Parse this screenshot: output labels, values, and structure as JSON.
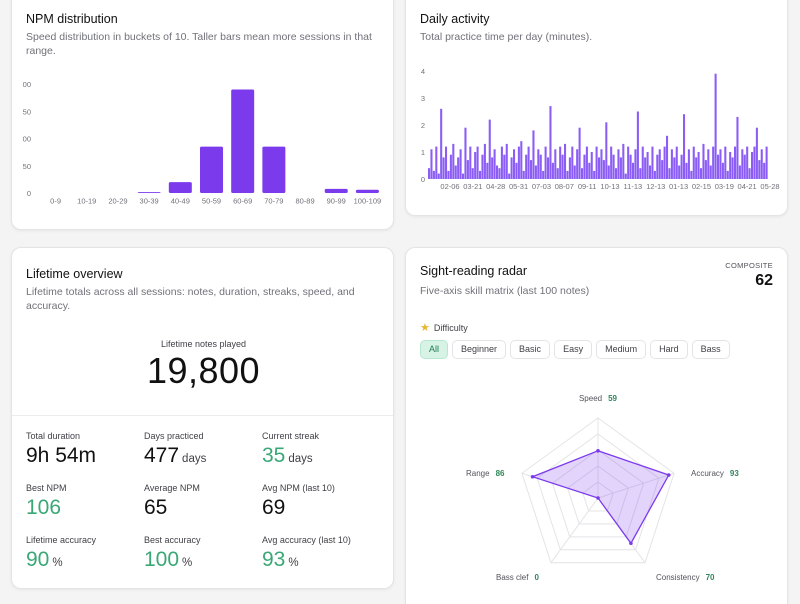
{
  "npm_card": {
    "title": "NPM distribution",
    "description": "Speed distribution in buckets of 10. Taller bars mean more sessions in that range."
  },
  "activity_card": {
    "title": "Daily activity",
    "description": "Total practice time per day (minutes)."
  },
  "lifetime_card": {
    "title": "Lifetime overview",
    "description": "Lifetime totals across all sessions: notes, duration, streaks, speed, and accuracy.",
    "hero_label": "Lifetime notes played",
    "hero_value": "19,800",
    "stats": [
      {
        "label": "Total duration",
        "value": "9h 54m",
        "unit": "",
        "highlight": false
      },
      {
        "label": "Days practiced",
        "value": "477",
        "unit": "days",
        "highlight": false
      },
      {
        "label": "Current streak",
        "value": "35",
        "unit": "days",
        "highlight": true
      },
      {
        "label": "Best NPM",
        "value": "106",
        "unit": "",
        "highlight": true
      },
      {
        "label": "Average NPM",
        "value": "65",
        "unit": "",
        "highlight": false
      },
      {
        "label": "Avg NPM (last 10)",
        "value": "69",
        "unit": "",
        "highlight": false
      },
      {
        "label": "Lifetime accuracy",
        "value": "90",
        "unit": "%",
        "highlight": true
      },
      {
        "label": "Best accuracy",
        "value": "100",
        "unit": "%",
        "highlight": true
      },
      {
        "label": "Avg accuracy (last 10)",
        "value": "93",
        "unit": "%",
        "highlight": true
      }
    ]
  },
  "radar_card": {
    "title": "Sight-reading radar",
    "description": "Five-axis skill matrix (last 100 notes)",
    "composite_label": "COMPOSITE",
    "composite_value": "62",
    "filter_label": "Difficulty",
    "filter_icon": "star-icon",
    "filters": [
      "All",
      "Beginner",
      "Basic",
      "Easy",
      "Medium",
      "Hard",
      "Bass"
    ],
    "active_filter": "All",
    "accent": "#7c3aed"
  },
  "colors": {
    "bar": "#7c3aed",
    "green": "#3aa876",
    "activity": "#8b5cf6"
  },
  "chart_data": [
    {
      "type": "bar",
      "title": "NPM distribution",
      "categories": [
        "0-9",
        "10-19",
        "20-29",
        "30-39",
        "40-49",
        "50-59",
        "60-69",
        "70-79",
        "80-89",
        "90-99",
        "100-109"
      ],
      "values": [
        0,
        0,
        0,
        0.3,
        4,
        17,
        38,
        17,
        0,
        1.5,
        1.2
      ],
      "y_tick_labels": [
        "0",
        "50",
        "00",
        "50",
        "00"
      ],
      "ylim": [
        0,
        40
      ]
    },
    {
      "type": "bar",
      "title": "Daily activity",
      "x_tick_labels": [
        "02-06",
        "03-21",
        "04-28",
        "05-31",
        "07-03",
        "08-07",
        "09-11",
        "10-13",
        "11-13",
        "12-13",
        "01-13",
        "02-15",
        "03-19",
        "04-21",
        "05-28"
      ],
      "y_ticks": [
        0,
        1,
        2,
        3,
        4
      ],
      "ylim": [
        0,
        4.3
      ],
      "values": [
        0.4,
        1.1,
        0.3,
        1.2,
        0.2,
        2.6,
        0.8,
        1.2,
        0.3,
        0.9,
        1.3,
        0.5,
        0.8,
        1.1,
        0.2,
        1.9,
        0.7,
        1.2,
        0.4,
        1.0,
        1.2,
        0.3,
        0.9,
        1.3,
        0.6,
        2.2,
        0.8,
        1.1,
        0.5,
        0.4,
        1.2,
        0.9,
        1.3,
        0.2,
        0.8,
        1.1,
        0.6,
        1.2,
        1.4,
        0.3,
        0.9,
        1.2,
        0.7,
        1.8,
        0.5,
        1.1,
        0.9,
        0.3,
        1.2,
        0.8,
        2.7,
        0.6,
        1.1,
        0.4,
        1.2,
        0.9,
        1.3,
        0.3,
        0.8,
        1.2,
        0.5,
        1.1,
        1.9,
        0.4,
        0.9,
        1.2,
        0.6,
        1.0,
        0.3,
        1.2,
        0.8,
        1.1,
        0.7,
        2.1,
        0.5,
        1.2,
        0.9,
        0.4,
        1.1,
        0.8,
        1.3,
        0.2,
        1.2,
        0.9,
        0.6,
        1.1,
        2.5,
        0.4,
        1.2,
        0.8,
        1.0,
        0.5,
        1.2,
        0.3,
        0.9,
        1.1,
        0.7,
        1.2,
        1.6,
        0.4,
        1.1,
        0.8,
        1.2,
        0.5,
        0.9,
        2.4,
        0.6,
        1.1,
        0.3,
        1.2,
        0.8,
        1.0,
        0.4,
        1.3,
        0.7,
        1.1,
        0.5,
        1.2,
        3.9,
        0.9,
        1.1,
        0.6,
        1.2,
        0.3,
        1.0,
        0.8,
        1.2,
        2.3,
        0.5,
        1.1,
        0.9,
        1.2,
        0.4,
        1.0,
        1.2,
        1.9,
        0.7,
        1.1,
        0.6,
        1.2
      ]
    },
    {
      "type": "radar",
      "title": "Sight-reading radar",
      "axes": [
        "Speed",
        "Accuracy",
        "Consistency",
        "Bass clef",
        "Range"
      ],
      "values": [
        59,
        93,
        70,
        0,
        86
      ],
      "max": 100
    }
  ]
}
